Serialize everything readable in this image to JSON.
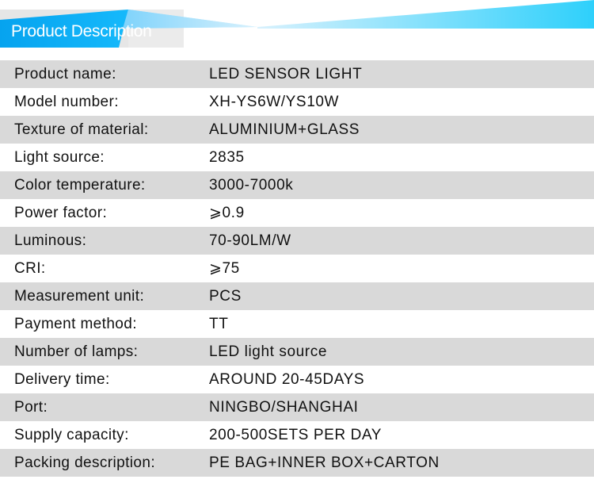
{
  "header": {
    "title": "Product Description",
    "accent": "#08aef5"
  },
  "rows": [
    {
      "label": "Product name:",
      "value": "LED SENSOR LIGHT"
    },
    {
      "label": "Model number:",
      "value": "XH-YS6W/YS10W"
    },
    {
      "label": "Texture of material:",
      "value": "ALUMINIUM+GLASS"
    },
    {
      "label": "Light source:",
      "value": "2835"
    },
    {
      "label": "Color temperature:",
      "value": "3000-7000k"
    },
    {
      "label": "Power factor:",
      "value": "⩾0.9"
    },
    {
      "label": "Luminous:",
      "value": "70-90LM/W"
    },
    {
      "label": "CRI:",
      "value": "⩾75"
    },
    {
      "label": "Measurement unit:",
      "value": "PCS"
    },
    {
      "label": "Payment method:",
      "value": "TT"
    },
    {
      "label": "Number of lamps:",
      "value": "LED light source"
    },
    {
      "label": "Delivery time:",
      "value": "AROUND 20-45DAYS"
    },
    {
      "label": "Port:",
      "value": "NINGBO/SHANGHAI"
    },
    {
      "label": "Supply capacity:",
      "value": "200-500SETS PER DAY"
    },
    {
      "label": "Packing description:",
      "value": "PE BAG+INNER BOX+CARTON"
    }
  ]
}
